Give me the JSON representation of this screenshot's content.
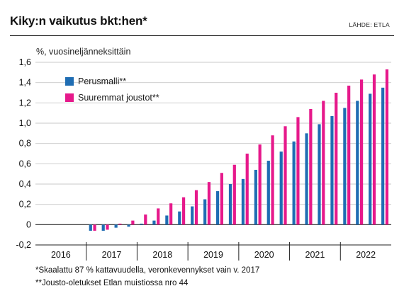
{
  "header": {
    "title": "Kiky:n vaikutus bkt:hen*",
    "source": "LÄHDE: ETLA"
  },
  "footnotes": [
    "*Skaalattu 87 % kattavuudella, veronkevennykset vain v. 2017",
    "**Jousto-oletukset Etlan muistiossa nro 44"
  ],
  "colors": {
    "series_1": "#1f6db3",
    "series_2": "#e6198b",
    "grid": "#c8c8c8"
  },
  "chart_data": {
    "type": "bar",
    "title": "Kiky:n vaikutus bkt:hen*",
    "ylabel": "%, vuosineljänneksittäin",
    "xlabel": "",
    "ylim": [
      -0.2,
      1.6
    ],
    "yticks": [
      -0.2,
      0,
      0.2,
      0.4,
      0.6,
      0.8,
      1.0,
      1.2,
      1.4,
      1.6
    ],
    "ytick_labels": [
      "-0,2",
      "0",
      "0,2",
      "0,4",
      "0,6",
      "0,8",
      "1,0",
      "1,2",
      "1,4",
      "1,6"
    ],
    "grid": true,
    "legend_position": "top-left",
    "years": [
      "2016",
      "2017",
      "2018",
      "2019",
      "2020",
      "2021",
      "2022"
    ],
    "categories": [
      "2016Q1",
      "2016Q2",
      "2016Q3",
      "2016Q4",
      "2017Q1",
      "2017Q2",
      "2017Q3",
      "2017Q4",
      "2018Q1",
      "2018Q2",
      "2018Q3",
      "2018Q4",
      "2019Q1",
      "2019Q2",
      "2019Q3",
      "2019Q4",
      "2020Q1",
      "2020Q2",
      "2020Q3",
      "2020Q4",
      "2021Q1",
      "2021Q2",
      "2021Q3",
      "2021Q4",
      "2022Q1",
      "2022Q2",
      "2022Q3",
      "2022Q4"
    ],
    "series": [
      {
        "name": "Perusmalli**",
        "values": [
          null,
          null,
          null,
          null,
          -0.06,
          -0.06,
          -0.03,
          -0.02,
          0.01,
          0.04,
          0.09,
          0.13,
          0.18,
          0.25,
          0.33,
          0.4,
          0.45,
          0.54,
          0.63,
          0.72,
          0.82,
          0.9,
          0.99,
          1.07,
          1.15,
          1.22,
          1.29,
          1.35
        ]
      },
      {
        "name": "Suuremmat joustot**",
        "values": [
          null,
          null,
          null,
          null,
          -0.06,
          -0.05,
          0.01,
          0.04,
          0.1,
          0.16,
          0.21,
          0.27,
          0.34,
          0.42,
          0.51,
          0.59,
          0.7,
          0.79,
          0.88,
          0.97,
          1.06,
          1.14,
          1.22,
          1.3,
          1.37,
          1.43,
          1.48,
          1.53
        ]
      }
    ]
  }
}
